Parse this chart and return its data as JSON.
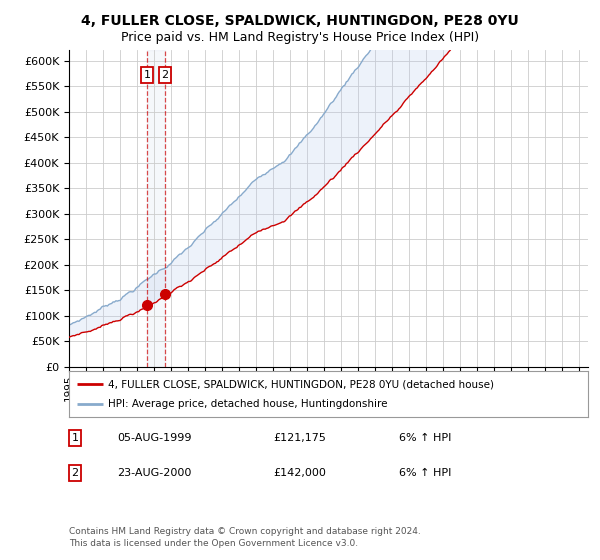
{
  "title": "4, FULLER CLOSE, SPALDWICK, HUNTINGDON, PE28 0YU",
  "subtitle": "Price paid vs. HM Land Registry's House Price Index (HPI)",
  "ylim": [
    0,
    620000
  ],
  "yticks": [
    0,
    50000,
    100000,
    150000,
    200000,
    250000,
    300000,
    350000,
    400000,
    450000,
    500000,
    550000,
    600000
  ],
  "xlim_start": 1995.0,
  "xlim_end": 2025.5,
  "purchase_markers": [
    {
      "date_num": 1999.583,
      "price": 121175,
      "label": "1"
    },
    {
      "date_num": 2000.638,
      "price": 142000,
      "label": "2"
    }
  ],
  "legend_line1": "4, FULLER CLOSE, SPALDWICK, HUNTINGDON, PE28 0YU (detached house)",
  "legend_line2": "HPI: Average price, detached house, Huntingdonshire",
  "table_rows": [
    {
      "num": "1",
      "date": "05-AUG-1999",
      "price": "£121,175",
      "change": "6% ↑ HPI"
    },
    {
      "num": "2",
      "date": "23-AUG-2000",
      "price": "£142,000",
      "change": "6% ↑ HPI"
    }
  ],
  "footnote": "Contains HM Land Registry data © Crown copyright and database right 2024.\nThis data is licensed under the Open Government Licence v3.0.",
  "price_color": "#cc0000",
  "hpi_color": "#88aacc",
  "fill_color": "#bbccee",
  "background_color": "#ffffff",
  "grid_color": "#cccccc"
}
